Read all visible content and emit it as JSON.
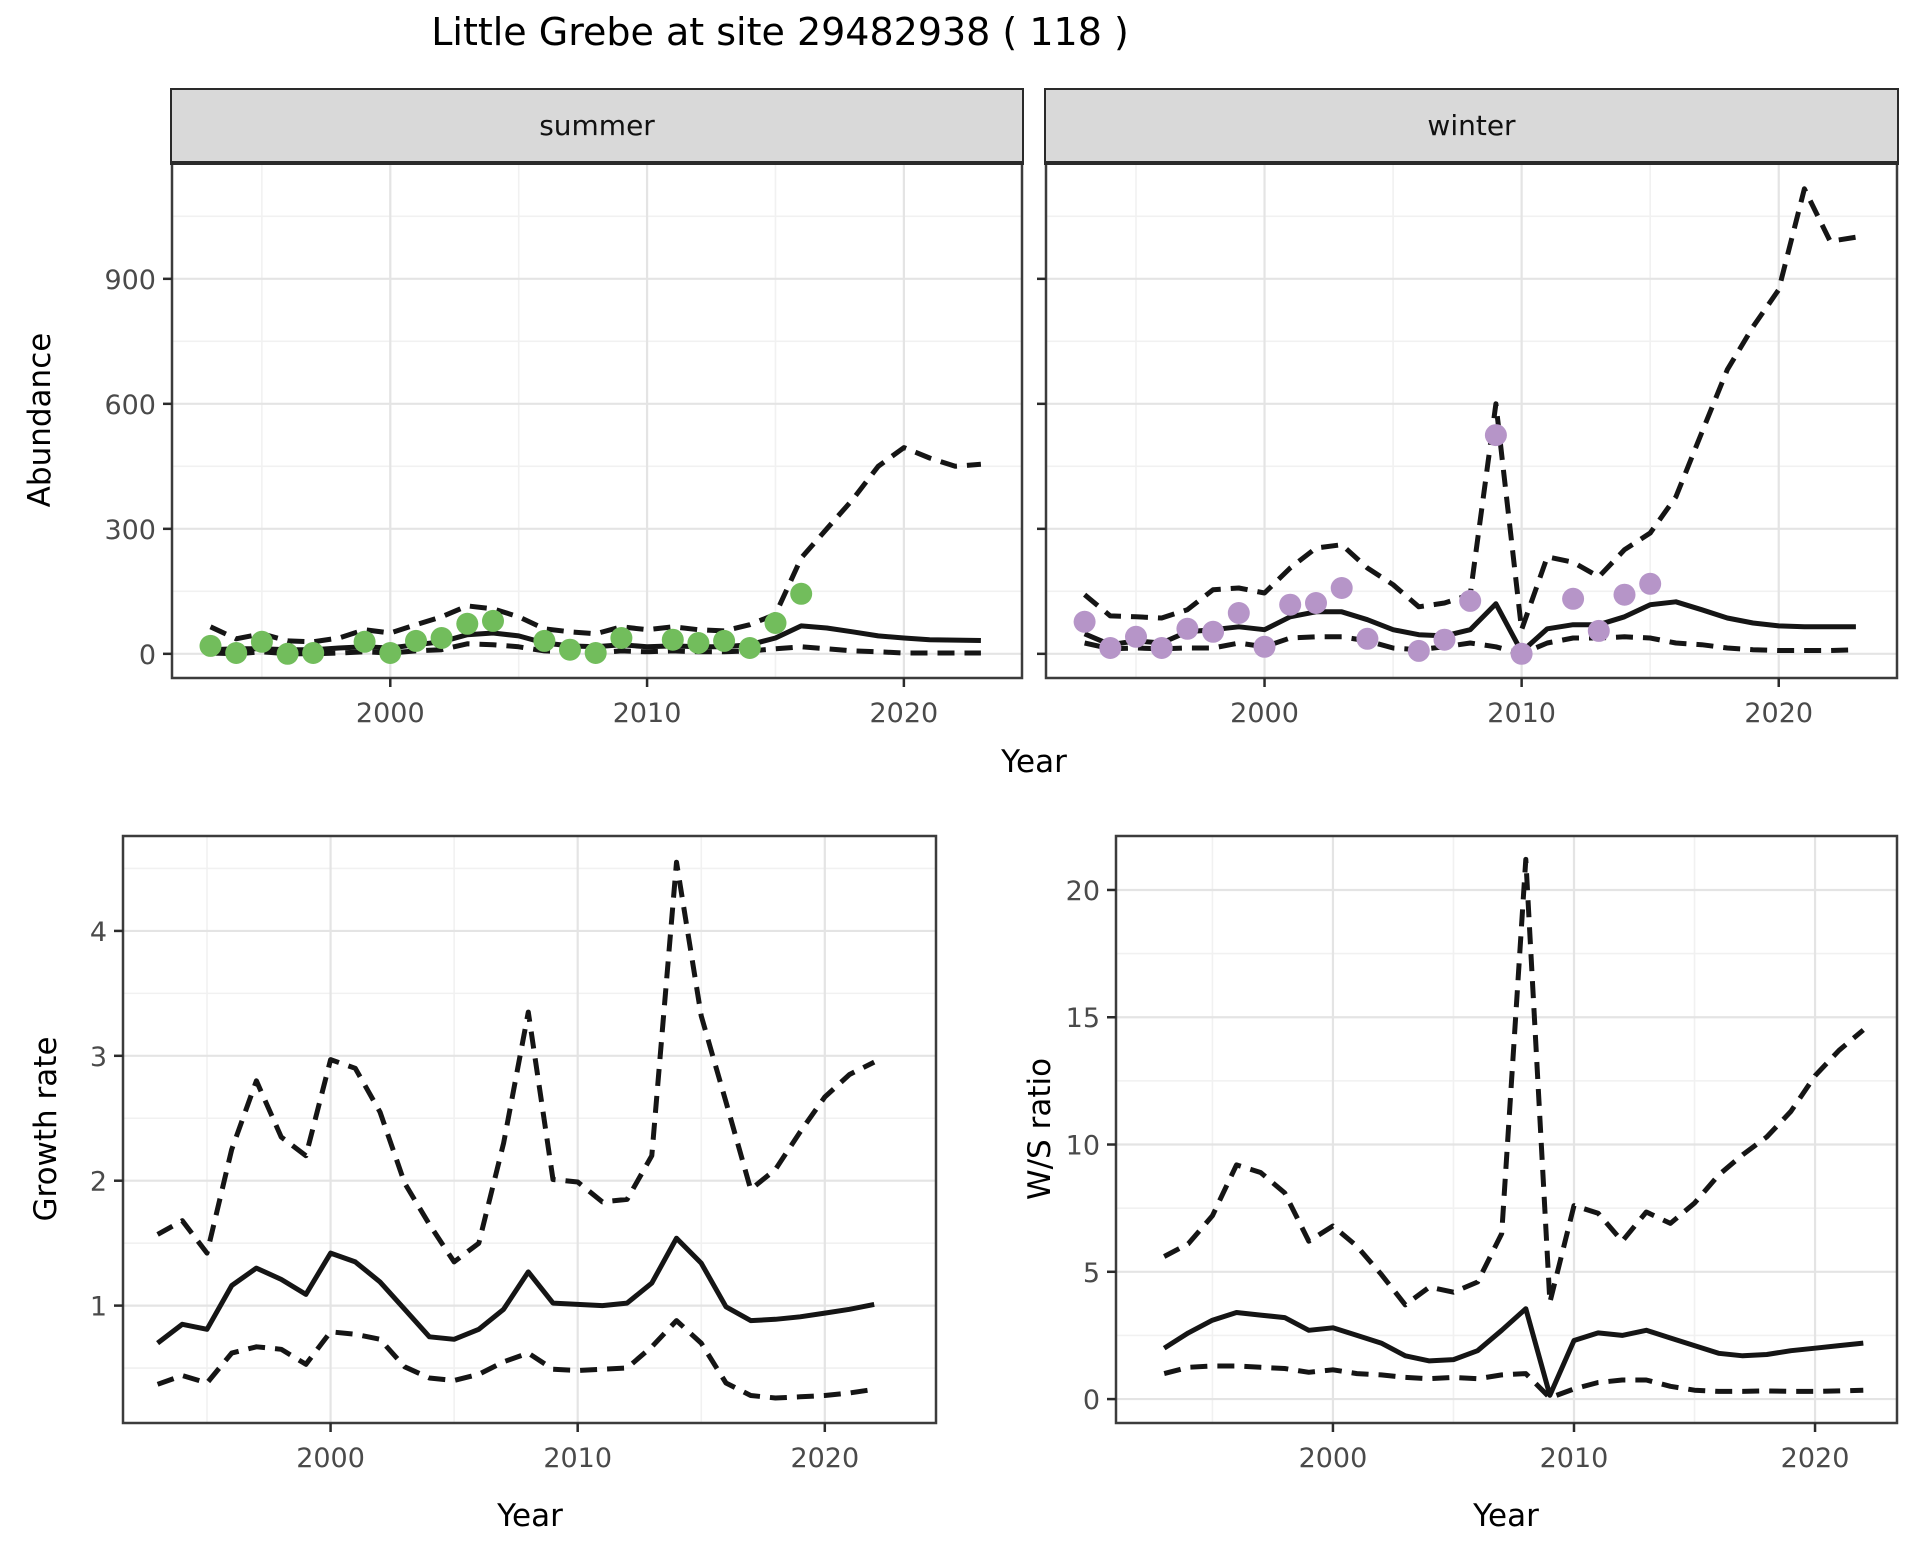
{
  "title": "Little Grebe at site 29482938 ( 118 )",
  "axis_titles": {
    "top_y": "Abundance",
    "top_x": "Year",
    "bottom_left_y": "Growth rate",
    "bottom_left_x": "Year",
    "bottom_right_y": "W/S ratio",
    "bottom_right_x": "Year"
  },
  "colors": {
    "summer_dot": "#72bd5c",
    "winter_dot": "#b695c8",
    "line": "#151515",
    "strip_bg": "#d9d9d9",
    "grid_major": "#e4e4e4",
    "grid_minor": "#f1f1f1"
  },
  "chart_data": {
    "type": "line",
    "title": "Little Grebe at site 29482938 ( 118 )",
    "facet_layout": "summer/winter share Abundance axis on top row; Growth rate and W/S ratio panels on bottom row",
    "legend": "none",
    "grid": "major and minor, light gray on white",
    "facets": [
      {
        "key": "summer",
        "strip_label": "summer",
        "ylabel": "Abundance",
        "xlabel": "Year",
        "x_range": [
          1991.5,
          2024.6
        ],
        "y_range": [
          -58,
          1178
        ],
        "x_ticks": [
          2000,
          2010,
          2020
        ],
        "x_minor": [
          1995,
          2005,
          2015
        ],
        "y_ticks": [
          0,
          300,
          600,
          900
        ],
        "y_minor": [
          150,
          450,
          750,
          1050
        ],
        "show_y_labels": true,
        "start_year": 1993,
        "series": {
          "upper": [
            65,
            36,
            48,
            31,
            29,
            38,
            58,
            50,
            70,
            89,
            115,
            108,
            89,
            60,
            53,
            48,
            65,
            58,
            65,
            58,
            55,
            70,
            95,
            230,
            300,
            370,
            450,
            495,
            470,
            450,
            455
          ],
          "median": [
            10,
            12,
            12,
            10,
            10,
            14,
            17,
            14,
            22,
            29,
            46,
            50,
            43,
            26,
            19,
            17,
            22,
            17,
            19,
            17,
            17,
            22,
            38,
            67,
            62,
            53,
            43,
            38,
            34,
            33,
            32
          ],
          "lower": [
            2,
            0,
            5,
            0,
            0,
            2,
            5,
            2,
            7,
            10,
            24,
            22,
            17,
            7,
            5,
            2,
            7,
            5,
            7,
            5,
            5,
            7,
            12,
            17,
            12,
            7,
            5,
            2,
            2,
            2,
            2
          ]
        },
        "points": {
          "color_key": "summer_dot",
          "data": [
            [
              1993,
              19
            ],
            [
              1994,
              2
            ],
            [
              1995,
              29
            ],
            [
              1996,
              0
            ],
            [
              1997,
              2
            ],
            [
              1999,
              29
            ],
            [
              2000,
              2
            ],
            [
              2001,
              31
            ],
            [
              2002,
              38
            ],
            [
              2003,
              72
            ],
            [
              2004,
              79
            ],
            [
              2006,
              31
            ],
            [
              2007,
              10
            ],
            [
              2008,
              2
            ],
            [
              2009,
              38
            ],
            [
              2011,
              34
            ],
            [
              2012,
              26
            ],
            [
              2013,
              31
            ],
            [
              2014,
              14
            ],
            [
              2015,
              74
            ],
            [
              2016,
              144
            ]
          ]
        }
      },
      {
        "key": "winter",
        "strip_label": "winter",
        "ylabel": "Abundance",
        "xlabel": "Year",
        "x_range": [
          1991.5,
          2024.6
        ],
        "y_range": [
          -58,
          1178
        ],
        "x_ticks": [
          2000,
          2010,
          2020
        ],
        "x_minor": [
          1995,
          2005,
          2015
        ],
        "y_ticks": [
          0,
          300,
          600,
          900
        ],
        "y_minor": [
          150,
          450,
          750,
          1050
        ],
        "show_y_labels": false,
        "start_year": 1993,
        "series": {
          "upper": [
            142,
            91,
            89,
            86,
            106,
            154,
            158,
            146,
            206,
            254,
            262,
            206,
            166,
            113,
            122,
            142,
            600,
            58,
            233,
            220,
            185,
            250,
            290,
            377,
            530,
            682,
            785,
            874,
            1116,
            990,
            1000
          ],
          "median": [
            48,
            22,
            31,
            26,
            53,
            58,
            65,
            58,
            89,
            101,
            101,
            82,
            58,
            46,
            43,
            58,
            120,
            5,
            60,
            70,
            70,
            89,
            118,
            125,
            106,
            86,
            74,
            67,
            65,
            65,
            65
          ],
          "lower": [
            26,
            12,
            14,
            12,
            14,
            14,
            26,
            17,
            38,
            41,
            41,
            31,
            14,
            10,
            17,
            26,
            17,
            0,
            26,
            38,
            38,
            41,
            38,
            26,
            22,
            14,
            10,
            8,
            8,
            8,
            10
          ]
        },
        "points": {
          "color_key": "winter_dot",
          "data": [
            [
              1993,
              77
            ],
            [
              1994,
              14
            ],
            [
              1995,
              41
            ],
            [
              1996,
              14
            ],
            [
              1997,
              60
            ],
            [
              1998,
              53
            ],
            [
              1999,
              98
            ],
            [
              2000,
              17
            ],
            [
              2001,
              118
            ],
            [
              2002,
              122
            ],
            [
              2003,
              158
            ],
            [
              2004,
              36
            ],
            [
              2006,
              7
            ],
            [
              2007,
              34
            ],
            [
              2008,
              127
            ],
            [
              2009,
              525
            ],
            [
              2010,
              0
            ],
            [
              2012,
              132
            ],
            [
              2013,
              55
            ],
            [
              2014,
              142
            ],
            [
              2015,
              168
            ]
          ]
        }
      },
      {
        "key": "growth",
        "strip_label": null,
        "ylabel": "Growth rate",
        "xlabel": "Year",
        "x_range": [
          1991.6,
          2024.5
        ],
        "y_range": [
          0.06,
          4.76
        ],
        "x_ticks": [
          2000,
          2010,
          2020
        ],
        "x_minor": [
          1995,
          2005,
          2015
        ],
        "y_ticks": [
          1,
          2,
          3,
          4
        ],
        "y_minor": [
          0.5,
          1.5,
          2.5,
          3.5,
          4.5
        ],
        "show_y_labels": true,
        "start_year": 1993,
        "series": {
          "upper": [
            1.57,
            1.68,
            1.42,
            2.25,
            2.8,
            2.35,
            2.2,
            2.97,
            2.9,
            2.55,
            1.98,
            1.65,
            1.35,
            1.5,
            2.3,
            3.35,
            2.01,
            1.99,
            1.83,
            1.85,
            2.2,
            4.55,
            3.32,
            2.63,
            1.93,
            2.09,
            2.39,
            2.67,
            2.85,
            2.95
          ],
          "median": [
            0.7,
            0.85,
            0.81,
            1.16,
            1.3,
            1.21,
            1.09,
            1.42,
            1.35,
            1.19,
            0.97,
            0.75,
            0.73,
            0.81,
            0.97,
            1.27,
            1.02,
            1.01,
            1.0,
            1.02,
            1.18,
            1.54,
            1.34,
            0.99,
            0.88,
            0.89,
            0.91,
            0.94,
            0.97,
            1.01
          ],
          "lower": [
            0.37,
            0.44,
            0.38,
            0.62,
            0.67,
            0.65,
            0.53,
            0.79,
            0.77,
            0.73,
            0.51,
            0.42,
            0.4,
            0.45,
            0.55,
            0.62,
            0.49,
            0.48,
            0.49,
            0.5,
            0.67,
            0.88,
            0.7,
            0.38,
            0.28,
            0.26,
            0.27,
            0.28,
            0.3,
            0.33
          ]
        },
        "points": null
      },
      {
        "key": "ratio",
        "strip_label": null,
        "ylabel": "W/S ratio",
        "xlabel": "Year",
        "x_range": [
          1991.0,
          2023.4
        ],
        "y_range": [
          -0.94,
          22.12
        ],
        "x_ticks": [
          2000,
          2010,
          2020
        ],
        "x_minor": [
          1995,
          2005,
          2015
        ],
        "y_ticks": [
          0,
          5,
          10,
          15,
          20
        ],
        "y_minor": [
          2.5,
          7.5,
          12.5,
          17.5
        ],
        "show_y_labels": true,
        "start_year": 1993,
        "series": {
          "upper": [
            5.6,
            6.1,
            7.2,
            9.2,
            8.9,
            8.1,
            6.2,
            6.8,
            6.0,
            4.9,
            3.7,
            4.4,
            4.2,
            4.6,
            6.5,
            21.2,
            3.8,
            7.6,
            7.3,
            6.2,
            7.35,
            6.9,
            7.7,
            8.8,
            9.6,
            10.3,
            11.3,
            12.7,
            13.7,
            14.5
          ],
          "median": [
            2.0,
            2.6,
            3.1,
            3.4,
            3.3,
            3.2,
            2.7,
            2.8,
            2.5,
            2.2,
            1.7,
            1.5,
            1.55,
            1.9,
            2.7,
            3.55,
            0.15,
            2.3,
            2.6,
            2.5,
            2.7,
            2.4,
            2.1,
            1.8,
            1.7,
            1.75,
            1.9,
            2.0,
            2.1,
            2.2
          ],
          "lower": [
            1.0,
            1.25,
            1.3,
            1.3,
            1.25,
            1.2,
            1.05,
            1.15,
            1.0,
            0.95,
            0.85,
            0.8,
            0.85,
            0.8,
            0.95,
            1.0,
            0.05,
            0.4,
            0.65,
            0.75,
            0.75,
            0.5,
            0.35,
            0.3,
            0.3,
            0.32,
            0.3,
            0.3,
            0.32,
            0.35
          ]
        },
        "points": null
      }
    ]
  }
}
